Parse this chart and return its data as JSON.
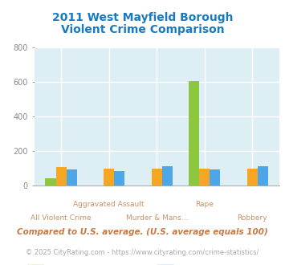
{
  "title_line1": "2011 West Mayfield Borough",
  "title_line2": "Violent Crime Comparison",
  "title_color": "#1a7abf",
  "categories": [
    "All Violent Crime",
    "Aggravated Assault",
    "Murder & Mans...",
    "Rape",
    "Robbery"
  ],
  "x_labels_top": [
    "",
    "Aggravated Assault",
    "",
    "Rape",
    ""
  ],
  "x_labels_bot": [
    "All Violent Crime",
    "",
    "Murder & Mans...",
    "",
    "Robbery"
  ],
  "series": {
    "West Mayfield Borough": [
      40,
      0,
      0,
      605,
      0
    ],
    "Pennsylvania": [
      95,
      85,
      110,
      95,
      110
    ],
    "National": [
      105,
      100,
      100,
      100,
      100
    ]
  },
  "colors": {
    "West Mayfield Borough": "#8dc63f",
    "Pennsylvania": "#4da6e8",
    "National": "#f5a623"
  },
  "ylim": [
    0,
    800
  ],
  "yticks": [
    0,
    200,
    400,
    600,
    800
  ],
  "plot_bg": "#ddeef4",
  "grid_color": "#ffffff",
  "xlabel_color": "#c4956a",
  "bar_width": 0.22,
  "footnote": "Compared to U.S. average. (U.S. average equals 100)",
  "footnote2": "© 2025 CityRating.com - https://www.cityrating.com/crime-statistics/",
  "footnote_color": "#c87941",
  "footnote2_color": "#aaaaaa",
  "footnote2_link_color": "#4da6e8"
}
